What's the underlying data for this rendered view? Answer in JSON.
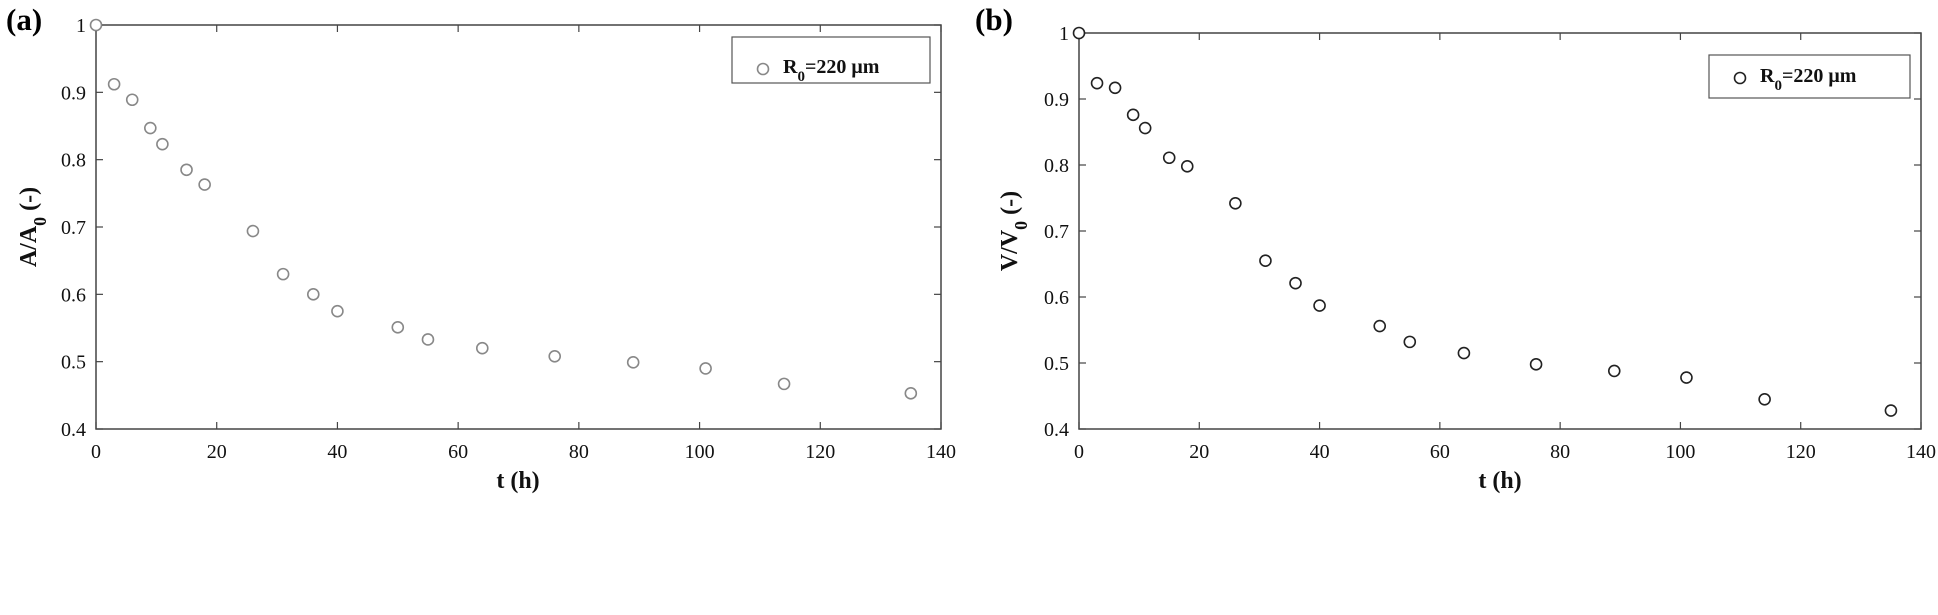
{
  "chart_data": [
    {
      "panel_label": "(a)",
      "type": "scatter",
      "xlabel": "t (h)",
      "ylabel": {
        "main": "A/A",
        "sub": "0",
        "after": " (-)"
      },
      "xlim": [
        0,
        140
      ],
      "ylim": [
        0.4,
        1.0
      ],
      "xticks": [
        "0",
        "20",
        "40",
        "60",
        "80",
        "100",
        "120",
        "140"
      ],
      "yticks": [
        "0.4",
        "0.5",
        "0.6",
        "0.7",
        "0.8",
        "0.9",
        "1"
      ],
      "marker_color": "#888888",
      "legend_position": "top-right",
      "series": [
        {
          "name": {
            "main": "R",
            "sub": "0",
            "after": "=220 μm"
          },
          "x": [
            0,
            3,
            6,
            9,
            11,
            15,
            18,
            26,
            31,
            36,
            40,
            50,
            55,
            64,
            76,
            89,
            101,
            114,
            135
          ],
          "y": [
            1.0,
            0.912,
            0.889,
            0.847,
            0.823,
            0.785,
            0.763,
            0.694,
            0.63,
            0.6,
            0.575,
            0.551,
            0.533,
            0.52,
            0.508,
            0.499,
            0.49,
            0.467,
            0.453
          ]
        }
      ]
    },
    {
      "panel_label": "(b)",
      "type": "scatter",
      "xlabel": "t (h)",
      "ylabel": {
        "main": "V/V",
        "sub": "0",
        "after": " (-)"
      },
      "xlim": [
        0,
        140
      ],
      "ylim": [
        0.4,
        1.0
      ],
      "xticks": [
        "0",
        "20",
        "40",
        "60",
        "80",
        "100",
        "120",
        "140"
      ],
      "yticks": [
        "0.4",
        "0.5",
        "0.6",
        "0.7",
        "0.8",
        "0.9",
        "1"
      ],
      "marker_color": "#222222",
      "legend_position": "top-right",
      "series": [
        {
          "name": {
            "main": "R",
            "sub": "0",
            "after": "=220 μm"
          },
          "x": [
            0,
            3,
            6,
            9,
            11,
            15,
            18,
            26,
            31,
            36,
            40,
            50,
            55,
            64,
            76,
            89,
            101,
            114,
            135
          ],
          "y": [
            1.0,
            0.924,
            0.917,
            0.876,
            0.856,
            0.811,
            0.798,
            0.742,
            0.655,
            0.621,
            0.587,
            0.556,
            0.532,
            0.515,
            0.498,
            0.488,
            0.478,
            0.445,
            0.428
          ]
        }
      ]
    }
  ]
}
